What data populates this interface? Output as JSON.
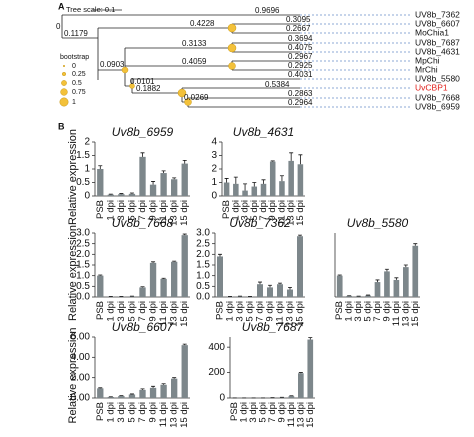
{
  "panel_a": {
    "label": "A",
    "scale_label": "Tree scale: 0.1",
    "root_label": "0",
    "branch_labels": [
      "0.9696",
      "0.4228",
      "0.3095",
      "0.2667",
      "0.1179",
      "0.3133",
      "0.3694",
      "0.4075",
      "0.0903",
      "0.4059",
      "0.2967",
      "0.2925",
      "0.0101",
      "0.4031",
      "0.1882",
      "0.5384",
      "0.0269",
      "0.2863",
      "0.2964"
    ],
    "leaves": [
      "UV8b_7362",
      "UV8b_6607",
      "MoChia1",
      "UV8b_7687",
      "UV8b_4631",
      "MpChi",
      "MrChi",
      "UV8b_5580",
      "UvCBP1",
      "UV8b_7668",
      "UV8b_6959"
    ],
    "legend_title": "bootstrap",
    "legend_labels": [
      "0",
      "0.25",
      "0.5",
      "0.75",
      "1"
    ]
  },
  "panel_b_label": "B",
  "chart_data": [
    {
      "type": "bar",
      "title": "Uv8b_6959",
      "ylabel": "Relative expression",
      "color": "#7d878b",
      "categories": [
        "PSB",
        "1 dpi",
        "3 dpi",
        "5 dpi",
        "7 dpi",
        "9 dpi",
        "11 dpi",
        "13 dpi",
        "15 dpi"
      ],
      "values": [
        1.0,
        0.05,
        0.07,
        0.08,
        1.45,
        0.42,
        0.85,
        0.62,
        1.2
      ],
      "errors": [
        0.12,
        0.02,
        0.02,
        0.03,
        0.15,
        0.12,
        0.08,
        0.05,
        0.12
      ],
      "ylim": [
        0,
        2
      ],
      "yticks": [
        0,
        0.5,
        1,
        1.5,
        2
      ]
    },
    {
      "type": "bar",
      "title": "Uv8b_4631",
      "color": "#7d878b",
      "categories": [
        "PSB",
        "1 dpi",
        "3 dpi",
        "5 dpi",
        "7 dpi",
        "9 dpi",
        "11 dpi",
        "13 dpi",
        "15 dpi"
      ],
      "values": [
        1.0,
        0.9,
        0.4,
        0.7,
        0.9,
        2.55,
        1.1,
        2.6,
        2.35
      ],
      "errors": [
        0.3,
        0.5,
        0.5,
        0.3,
        0.3,
        0.05,
        0.4,
        0.6,
        0.7
      ],
      "ylim": [
        0,
        4
      ],
      "yticks": [
        0,
        1,
        2,
        3,
        4
      ]
    },
    {
      "type": "bar",
      "title": "Uv8b_7668",
      "ylabel": "Relative expression",
      "color": "#7d878b",
      "categories": [
        "PSB",
        "1 dpi",
        "3 dpi",
        "5 dpi",
        "7 dpi",
        "9 dpi",
        "11 dpi",
        "13 dpi",
        "15 dpi"
      ],
      "values": [
        1.0,
        0.02,
        0.02,
        0.03,
        0.45,
        1.6,
        0.85,
        1.65,
        2.9
      ],
      "errors": [
        0.03,
        0.01,
        0.01,
        0.01,
        0.03,
        0.05,
        0.03,
        0.03,
        0.05
      ],
      "ylim": [
        0,
        3
      ],
      "yticks": [
        {
          "value": 0,
          "label": "0.0"
        },
        {
          "value": 0.5,
          "label": "0.5"
        },
        {
          "value": 1,
          "label": "1.0"
        },
        {
          "value": 1.5,
          "label": "1.5"
        },
        {
          "value": 2,
          "label": "2.0"
        },
        {
          "value": 2.5,
          "label": "2.5"
        },
        {
          "value": 3,
          "label": "3.0"
        }
      ]
    },
    {
      "type": "bar",
      "title": "Uv8b_7362",
      "color": "#7d878b",
      "categories": [
        "PSB",
        "1 dpi",
        "3 dpi",
        "5 dpi",
        "7 dpi",
        "9 dpi",
        "11 dpi",
        "13 dpi",
        "15 dpi"
      ],
      "values": [
        1.9,
        0.02,
        0.03,
        0.02,
        0.6,
        0.45,
        0.6,
        0.35,
        2.85
      ],
      "errors": [
        0.1,
        0.01,
        0.01,
        0.01,
        0.1,
        0.1,
        0.05,
        0.1,
        0.05
      ],
      "ylim": [
        0,
        3
      ],
      "yticks": [
        {
          "value": 0,
          "label": "0.0"
        },
        {
          "value": 0.5,
          "label": "0.5"
        },
        {
          "value": 1,
          "label": "1.0"
        },
        {
          "value": 1.5,
          "label": "1.5"
        },
        {
          "value": 2,
          "label": "2.0"
        },
        {
          "value": 2.5,
          "label": "2.5"
        },
        {
          "value": 3,
          "label": "3.0"
        }
      ]
    },
    {
      "type": "bar",
      "title": "Uv8b_5580",
      "color": "#7d878b",
      "categories": [
        "PSB",
        "1 dpi",
        "3 dpi",
        "5 dpi",
        "7 dpi",
        "9 dpi",
        "11 dpi",
        "13 dpi",
        "15 dpi"
      ],
      "values": [
        1.0,
        0.05,
        0.03,
        0.07,
        0.7,
        1.2,
        0.8,
        1.4,
        2.4
      ],
      "errors": [
        0.03,
        0.01,
        0.01,
        0.02,
        0.1,
        0.1,
        0.1,
        0.1,
        0.1
      ],
      "ylim": [
        0,
        3
      ]
    },
    {
      "type": "bar",
      "title": "Uv8b_6607",
      "ylabel": "Relative expression",
      "color": "#7d878b",
      "categories": [
        "PSB",
        "1 dpi",
        "3 dpi",
        "5 dpi",
        "7 dpi",
        "9 dpi",
        "11 dpi",
        "13 dpi",
        "15 dpi"
      ],
      "values": [
        0.95,
        0.1,
        0.2,
        0.35,
        0.8,
        1.0,
        1.3,
        1.9,
        5.2
      ],
      "errors": [
        0.05,
        0.02,
        0.03,
        0.05,
        0.1,
        0.15,
        0.1,
        0.1,
        0.1
      ],
      "ylim": [
        0,
        6
      ],
      "yticks": [
        {
          "value": 0,
          "label": "0.00"
        },
        {
          "value": 2,
          "label": "2.00"
        },
        {
          "value": 4,
          "label": "4.00"
        },
        {
          "value": 6,
          "label": "6.00"
        }
      ]
    },
    {
      "type": "bar",
      "title": "Uv8b_7687",
      "color": "#7d878b",
      "categories": [
        "PSB",
        "1 dpi",
        "3 dpi",
        "5 dpi",
        "7 dpi",
        "9 dpi",
        "11 dpi",
        "13 dpi",
        "15 dpi"
      ],
      "values": [
        1,
        1,
        1,
        1,
        2,
        5,
        15,
        195,
        460
      ],
      "errors": [
        0.2,
        0.2,
        0.2,
        0.2,
        0.5,
        1,
        3,
        5,
        15
      ],
      "ylim": [
        0,
        480
      ],
      "yticks": [
        0,
        200,
        400
      ]
    }
  ]
}
